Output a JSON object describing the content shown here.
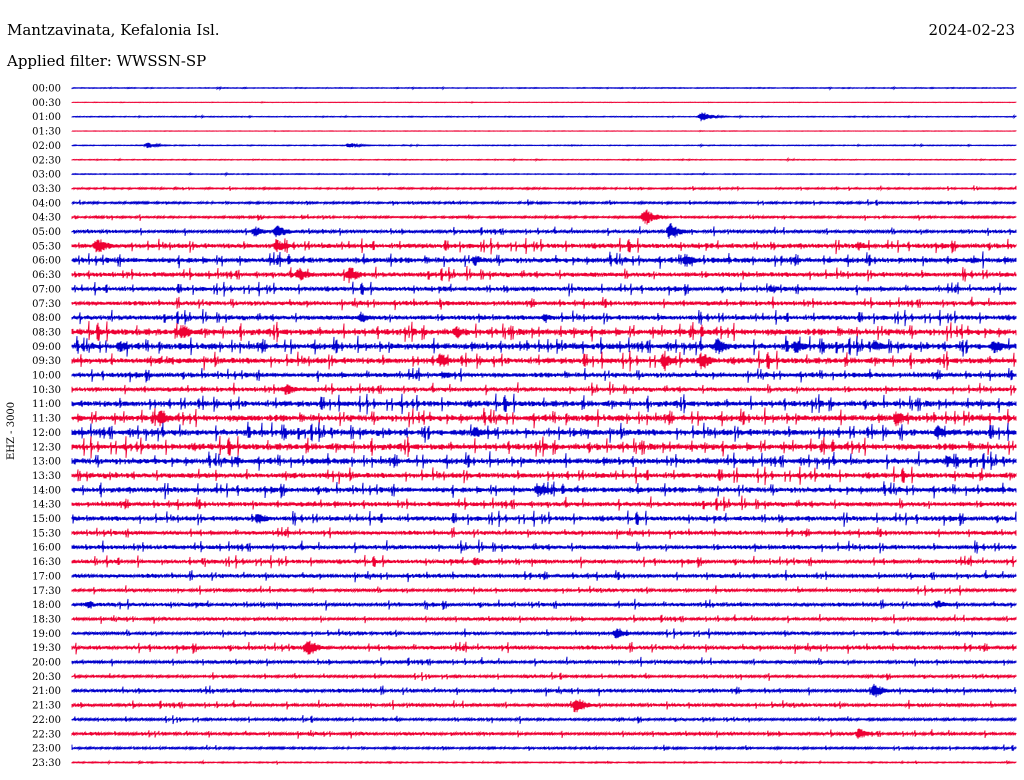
{
  "header": {
    "station": "Mantzavinata, Kefalonia Isl.",
    "date": "2024-02-23",
    "filter": "Applied filter: WWSSN-SP"
  },
  "channel_label": "EHZ - 3000",
  "colors": {
    "even": "#0000cc",
    "odd": "#ee0033"
  },
  "chart_data": {
    "type": "line",
    "title": "Mantzavinata, Kefalonia Isl.",
    "subtitle": "Applied filter: WWSSN-SP",
    "date": "2024-02-23",
    "ylabel": "EHZ - 3000",
    "trace_minutes": 30,
    "rows": [
      "00:00",
      "00:30",
      "01:00",
      "01:30",
      "02:00",
      "02:30",
      "03:00",
      "03:30",
      "04:00",
      "04:30",
      "05:00",
      "05:30",
      "06:00",
      "06:30",
      "07:00",
      "07:30",
      "08:00",
      "08:30",
      "09:00",
      "09:30",
      "10:00",
      "10:30",
      "11:00",
      "11:30",
      "12:00",
      "12:30",
      "13:00",
      "13:30",
      "14:00",
      "14:30",
      "15:00",
      "15:30",
      "16:00",
      "16:30",
      "17:00",
      "17:30",
      "18:00",
      "18:30",
      "19:00",
      "19:30",
      "20:00",
      "20:30",
      "21:00",
      "21:30",
      "22:00",
      "22:30",
      "23:00",
      "23:30"
    ],
    "noise_level": [
      0.4,
      0.2,
      0.4,
      0.2,
      0.4,
      0.4,
      0.4,
      0.8,
      1.0,
      1.0,
      1.5,
      2.2,
      2.5,
      2.2,
      2.0,
      2.0,
      2.2,
      3.0,
      3.0,
      2.8,
      2.2,
      2.0,
      2.8,
      3.0,
      3.0,
      3.0,
      2.8,
      2.5,
      2.5,
      2.2,
      2.2,
      1.8,
      2.0,
      1.8,
      1.8,
      1.4,
      1.6,
      1.4,
      1.4,
      1.8,
      1.5,
      1.2,
      1.6,
      1.5,
      1.2,
      1.4,
      1.0,
      0.6
    ],
    "events": [
      {
        "row": 2,
        "minute": 20.0,
        "amplitude": 6
      },
      {
        "row": 4,
        "minute": 2.4,
        "amplitude": 3
      },
      {
        "row": 4,
        "minute": 8.8,
        "amplitude": 3
      },
      {
        "row": 9,
        "minute": 18.2,
        "amplitude": 10
      },
      {
        "row": 10,
        "minute": 5.8,
        "amplitude": 6
      },
      {
        "row": 10,
        "minute": 6.5,
        "amplitude": 8
      },
      {
        "row": 10,
        "minute": 19.0,
        "amplitude": 10
      },
      {
        "row": 11,
        "minute": 0.8,
        "amplitude": 10
      },
      {
        "row": 11,
        "minute": 6.5,
        "amplitude": 8
      },
      {
        "row": 11,
        "minute": 25.0,
        "amplitude": 5
      },
      {
        "row": 12,
        "minute": 12.8,
        "amplitude": 6
      },
      {
        "row": 12,
        "minute": 19.5,
        "amplitude": 8
      },
      {
        "row": 13,
        "minute": 7.2,
        "amplitude": 8
      },
      {
        "row": 13,
        "minute": 8.8,
        "amplitude": 10
      },
      {
        "row": 14,
        "minute": 22.2,
        "amplitude": 5
      },
      {
        "row": 16,
        "minute": 9.2,
        "amplitude": 6
      },
      {
        "row": 16,
        "minute": 15.0,
        "amplitude": 5
      },
      {
        "row": 17,
        "minute": 3.5,
        "amplitude": 9
      },
      {
        "row": 17,
        "minute": 12.2,
        "amplitude": 7
      },
      {
        "row": 18,
        "minute": 1.5,
        "amplitude": 7
      },
      {
        "row": 18,
        "minute": 20.5,
        "amplitude": 10
      },
      {
        "row": 18,
        "minute": 23.0,
        "amplitude": 8
      },
      {
        "row": 18,
        "minute": 25.5,
        "amplitude": 7
      },
      {
        "row": 18,
        "minute": 29.3,
        "amplitude": 9
      },
      {
        "row": 19,
        "minute": 11.7,
        "amplitude": 8
      },
      {
        "row": 19,
        "minute": 18.8,
        "amplitude": 9
      },
      {
        "row": 19,
        "minute": 20.0,
        "amplitude": 10
      },
      {
        "row": 20,
        "minute": 11.8,
        "amplitude": 5
      },
      {
        "row": 21,
        "minute": 6.8,
        "amplitude": 7
      },
      {
        "row": 23,
        "minute": 2.8,
        "amplitude": 10
      },
      {
        "row": 23,
        "minute": 26.2,
        "amplitude": 9
      },
      {
        "row": 24,
        "minute": 12.8,
        "amplitude": 7
      },
      {
        "row": 24,
        "minute": 27.5,
        "amplitude": 8
      },
      {
        "row": 26,
        "minute": 5.2,
        "amplitude": 5
      },
      {
        "row": 26,
        "minute": 27.8,
        "amplitude": 7
      },
      {
        "row": 28,
        "minute": 14.8,
        "amplitude": 8
      },
      {
        "row": 30,
        "minute": 5.9,
        "amplitude": 7
      },
      {
        "row": 33,
        "minute": 12.8,
        "amplitude": 5
      },
      {
        "row": 36,
        "minute": 0.5,
        "amplitude": 4
      },
      {
        "row": 36,
        "minute": 27.5,
        "amplitude": 5
      },
      {
        "row": 38,
        "minute": 17.3,
        "amplitude": 7
      },
      {
        "row": 39,
        "minute": 7.5,
        "amplitude": 10
      },
      {
        "row": 42,
        "minute": 25.5,
        "amplitude": 8
      },
      {
        "row": 43,
        "minute": 16.0,
        "amplitude": 10
      },
      {
        "row": 45,
        "minute": 25.0,
        "amplitude": 6
      }
    ]
  }
}
